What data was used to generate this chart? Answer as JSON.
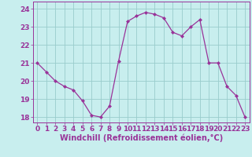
{
  "x": [
    0,
    1,
    2,
    3,
    4,
    5,
    6,
    7,
    8,
    9,
    10,
    11,
    12,
    13,
    14,
    15,
    16,
    17,
    18,
    19,
    20,
    21,
    22,
    23
  ],
  "y": [
    21.0,
    20.5,
    20.0,
    19.7,
    19.5,
    18.9,
    18.1,
    18.0,
    18.6,
    21.1,
    23.3,
    23.6,
    23.8,
    23.7,
    23.5,
    22.7,
    22.5,
    23.0,
    23.4,
    21.0,
    21.0,
    19.7,
    19.2,
    18.0
  ],
  "line_color": "#993399",
  "marker": "D",
  "marker_size": 2.0,
  "background_color": "#c8eeee",
  "grid_color": "#99cccc",
  "xlabel": "Windchill (Refroidissement éolien,°C)",
  "xlabel_fontsize": 7,
  "tick_label_fontsize": 6.5,
  "yticks": [
    18,
    19,
    20,
    21,
    22,
    23,
    24
  ],
  "xticks": [
    0,
    1,
    2,
    3,
    4,
    5,
    6,
    7,
    8,
    9,
    10,
    11,
    12,
    13,
    14,
    15,
    16,
    17,
    18,
    19,
    20,
    21,
    22,
    23
  ],
  "ylim": [
    17.7,
    24.4
  ],
  "xlim": [
    -0.5,
    23.5
  ]
}
